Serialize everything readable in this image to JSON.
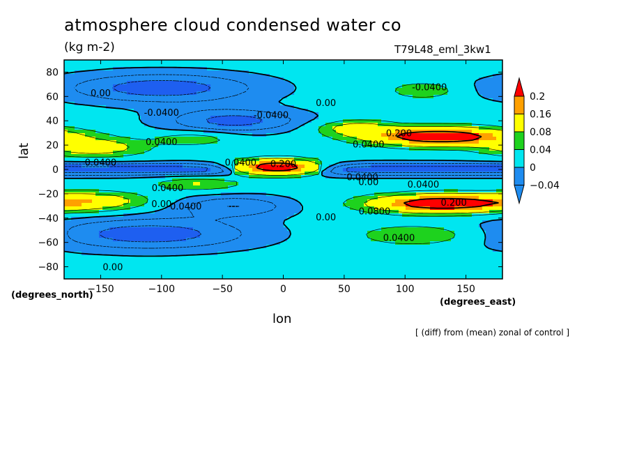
{
  "chart_data": {
    "type": "heatmap",
    "title": "atmosphere cloud condensed water co",
    "units": "(kg m-2)",
    "run_name": "T79L48_eml_3kw1",
    "xlabel": "lon",
    "ylabel": "lat",
    "x_units": "(degrees_east)",
    "y_units": "(degrees_north)",
    "xlim": [
      -180,
      180
    ],
    "ylim": [
      -90,
      90
    ],
    "x_ticks": [
      -150,
      -100,
      -50,
      0,
      50,
      100,
      150
    ],
    "y_ticks": [
      -80,
      -60,
      -40,
      -20,
      0,
      20,
      40,
      60,
      80
    ],
    "colorbar": {
      "levels": [
        -0.04,
        0,
        0.04,
        0.08,
        0.16,
        0.2
      ],
      "tick_labels": [
        "-0.04",
        "0",
        "0.04",
        "0.08",
        "0.16",
        "0.2"
      ],
      "colors": [
        "#1e8cf0",
        "#00e6f0",
        "#1ed21e",
        "#ffff00",
        "#ffa000",
        "#ff0000"
      ],
      "below_color": "#1e8cf0",
      "above_color": "#ff0000",
      "lowest_fill": "#1e5ff0"
    },
    "contour_labels": [
      {
        "text": "0.00",
        "lon": -150,
        "lat": 63
      },
      {
        "text": "-0.0400",
        "lon": -100,
        "lat": 47
      },
      {
        "text": "0.00",
        "lon": 35,
        "lat": 55
      },
      {
        "text": "-0.0400",
        "lon": -10,
        "lat": 45
      },
      {
        "text": "-0.0400",
        "lon": 120,
        "lat": 68
      },
      {
        "text": "0.0400",
        "lon": -100,
        "lat": 23
      },
      {
        "text": "0.200",
        "lon": 95,
        "lat": 30
      },
      {
        "text": "0.0400",
        "lon": 70,
        "lat": 21
      },
      {
        "text": "0.0400",
        "lon": -150,
        "lat": 6
      },
      {
        "text": "0.0400",
        "lon": -35,
        "lat": 6
      },
      {
        "text": "0.200",
        "lon": 0,
        "lat": 5
      },
      {
        "text": "0.0400",
        "lon": 65,
        "lat": -6
      },
      {
        "text": "0.00",
        "lon": 70,
        "lat": -10
      },
      {
        "text": "0.0400",
        "lon": 115,
        "lat": -12
      },
      {
        "text": "0.0400",
        "lon": -95,
        "lat": -15
      },
      {
        "text": "0.00",
        "lon": -100,
        "lat": -28
      },
      {
        "text": "0.0400",
        "lon": -80,
        "lat": -30
      },
      {
        "text": "0.200",
        "lon": 140,
        "lat": -27
      },
      {
        "text": "0.0800",
        "lon": 75,
        "lat": -34
      },
      {
        "text": "0.00",
        "lon": 35,
        "lat": -39
      },
      {
        "text": "0.0400",
        "lon": 95,
        "lat": -56
      },
      {
        "text": "0.00",
        "lon": -140,
        "lat": -80
      }
    ]
  },
  "footnote": "[ (diff) from (mean) zonal of control ]"
}
